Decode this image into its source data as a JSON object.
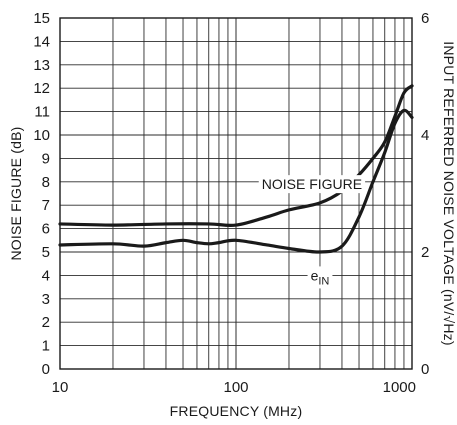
{
  "chart_data": {
    "type": "line",
    "xlabel": "FREQUENCY (MHz)",
    "ylabel": "NOISE FIGURE (dB)",
    "y2label": "INPUT REFERRED NOISE VOLTAGE (nV/√Hz)",
    "xscale": "log",
    "xlim": [
      10,
      1000
    ],
    "ylim": [
      0,
      15
    ],
    "y2lim": [
      0,
      6
    ],
    "grid": true,
    "x_ticks": [
      {
        "value": 10,
        "label": "10"
      },
      {
        "value": 100,
        "label": "100"
      },
      {
        "value": 1000,
        "label": "1000"
      }
    ],
    "y_ticks": [
      "0",
      "1",
      "2",
      "3",
      "4",
      "5",
      "6",
      "7",
      "8",
      "9",
      "10",
      "11",
      "12",
      "13",
      "14",
      "15"
    ],
    "y2_ticks": [
      {
        "value": 0,
        "label": "0"
      },
      {
        "value": 2,
        "label": "2"
      },
      {
        "value": 4,
        "label": "4"
      },
      {
        "value": 6,
        "label": "6"
      }
    ],
    "series": [
      {
        "name": "NOISE FIGURE",
        "axis": "left",
        "points": [
          [
            10,
            6.2
          ],
          [
            20,
            6.15
          ],
          [
            40,
            6.2
          ],
          [
            70,
            6.2
          ],
          [
            100,
            6.15
          ],
          [
            150,
            6.5
          ],
          [
            200,
            6.8
          ],
          [
            300,
            7.1
          ],
          [
            400,
            7.6
          ],
          [
            500,
            8.3
          ],
          [
            600,
            9.0
          ],
          [
            700,
            9.7
          ],
          [
            800,
            10.8
          ],
          [
            900,
            11.8
          ],
          [
            1000,
            12.1
          ]
        ]
      },
      {
        "name": "eIN",
        "axis": "right",
        "points": [
          [
            10,
            2.12
          ],
          [
            20,
            2.14
          ],
          [
            30,
            2.1
          ],
          [
            40,
            2.16
          ],
          [
            50,
            2.2
          ],
          [
            60,
            2.16
          ],
          [
            70,
            2.14
          ],
          [
            80,
            2.16
          ],
          [
            100,
            2.2
          ],
          [
            150,
            2.12
          ],
          [
            200,
            2.06
          ],
          [
            300,
            2.0
          ],
          [
            400,
            2.1
          ],
          [
            500,
            2.6
          ],
          [
            600,
            3.2
          ],
          [
            700,
            3.7
          ],
          [
            800,
            4.2
          ],
          [
            900,
            4.42
          ],
          [
            1000,
            4.3
          ]
        ]
      }
    ],
    "annotations": [
      {
        "text_main": "NOISE FIGURE",
        "text_sub": "",
        "x": 270,
        "y": 7.9
      },
      {
        "text_main": "e",
        "text_sub": "IN",
        "x": 300,
        "y": 4.0
      }
    ]
  }
}
